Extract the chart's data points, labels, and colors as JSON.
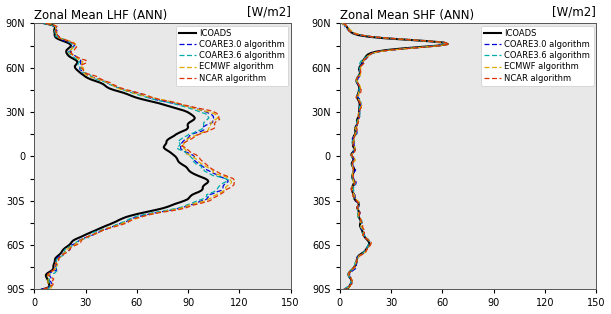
{
  "title_lhf": "Zonal Mean LHF (ANN)",
  "title_shf": "Zonal Mean SHF (ANN)",
  "unit_label": "[W/m2]",
  "xlim": [
    0,
    150
  ],
  "xticks": [
    0,
    30,
    60,
    90,
    120,
    150
  ],
  "ytick_labels": [
    "90N",
    "",
    "60N",
    "",
    "30N",
    "",
    "0",
    "",
    "30S",
    "",
    "60S",
    "",
    "90S"
  ],
  "ytick_vals": [
    90,
    75,
    60,
    45,
    30,
    15,
    0,
    -15,
    -30,
    -45,
    -60,
    -75,
    -90
  ],
  "ylim": [
    -90,
    90
  ],
  "legend_labels": [
    "ICOADS",
    "COARE3.0 algorithm",
    "COARE3.6 algorithm",
    "ECMWF algorithm",
    "NCAR algorithm"
  ],
  "line_colors": [
    "#000000",
    "#0000dd",
    "#00aaaa",
    "#ddaa00",
    "#dd3300"
  ],
  "line_styles": [
    "-",
    "--",
    "--",
    "--",
    "--"
  ],
  "line_widths": [
    1.5,
    0.9,
    0.9,
    0.9,
    0.9
  ],
  "title_fontsize": 8.5,
  "tick_fontsize": 7,
  "legend_fontsize": 6.0,
  "bg_color": "#e8e8e8"
}
